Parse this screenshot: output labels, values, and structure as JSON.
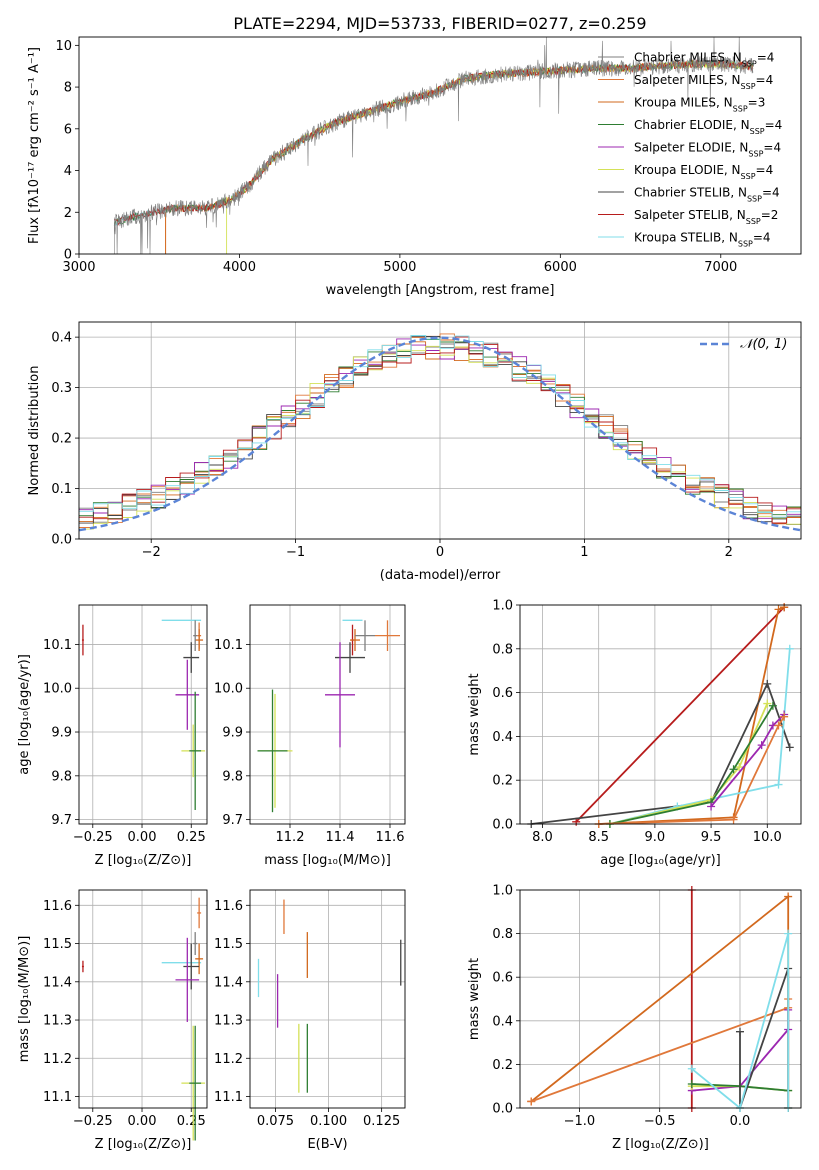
{
  "figure_title": "PLATE=2294, MJD=53733, FIBERID=0277, z=0.259",
  "colors": {
    "Chabrier MILES": "#7f7f7f",
    "Salpeter MILES": "#e0783a",
    "Kroupa MILES": "#d2691e",
    "Chabrier ELODIE": "#2e7d32",
    "Salpeter ELODIE": "#9c27b0",
    "Kroupa ELODIE": "#d4e157",
    "Chabrier STELIB": "#444444",
    "Salpeter STELIB": "#b71c1c",
    "Kroupa STELIB": "#80deea",
    "gauss": "#5b84d6",
    "grid": "#b0b0b0"
  },
  "chart_data": [
    {
      "id": "spectrum",
      "type": "line",
      "xlabel": "wavelength [Angstrom, rest frame]",
      "ylabel": "Flux [f_λ10^-17 erg cm^-2 s^-1 A^-1]",
      "xlim": [
        3000,
        7500
      ],
      "ylim": [
        0,
        10.4
      ],
      "xticks": [
        3000,
        4000,
        5000,
        6000,
        7000
      ],
      "yticks": [
        0,
        2,
        4,
        6,
        8,
        10
      ],
      "grid": false,
      "legend": "top-right",
      "legend_entries": [
        {
          "name": "Chabrier MILES, N_SSP=4",
          "color": "#7f7f7f"
        },
        {
          "name": "Salpeter MILES, N_SSP=4",
          "color": "#e0783a"
        },
        {
          "name": "Kroupa MILES, N_SSP=3",
          "color": "#d2691e"
        },
        {
          "name": "Chabrier ELODIE, N_SSP=4",
          "color": "#2e7d32"
        },
        {
          "name": "Salpeter ELODIE, N_SSP=4",
          "color": "#9c27b0"
        },
        {
          "name": "Kroupa ELODIE, N_SSP=4",
          "color": "#d4e157"
        },
        {
          "name": "Chabrier STELIB, N_SSP=4",
          "color": "#444444"
        },
        {
          "name": "Salpeter STELIB, N_SSP=2",
          "color": "#b71c1c"
        },
        {
          "name": "Kroupa STELIB, N_SSP=4",
          "color": "#80deea"
        }
      ],
      "continuum": [
        [
          3220,
          1.5
        ],
        [
          3400,
          1.9
        ],
        [
          3600,
          2.2
        ],
        [
          3800,
          2.2
        ],
        [
          3950,
          2.6
        ],
        [
          4050,
          3.2
        ],
        [
          4200,
          4.5
        ],
        [
          4400,
          5.5
        ],
        [
          4600,
          6.3
        ],
        [
          4800,
          6.8
        ],
        [
          5000,
          7.3
        ],
        [
          5200,
          7.7
        ],
        [
          5400,
          8.4
        ],
        [
          5600,
          8.6
        ],
        [
          5800,
          8.7
        ],
        [
          6000,
          8.8
        ],
        [
          6200,
          8.9
        ],
        [
          6400,
          8.9
        ],
        [
          6600,
          9.0
        ],
        [
          6800,
          9.1
        ],
        [
          7000,
          9.1
        ],
        [
          7200,
          9.0
        ]
      ],
      "data_start": 3220,
      "data_end": 7200
    },
    {
      "id": "residuals",
      "type": "line",
      "xlabel": "(data-model)/error",
      "ylabel": "Normed distribution",
      "xlim": [
        -2.5,
        2.5
      ],
      "ylim": [
        0,
        0.43
      ],
      "xticks": [
        -2,
        -1,
        0,
        1,
        2
      ],
      "yticks": [
        0.0,
        0.1,
        0.2,
        0.3,
        0.4
      ],
      "grid": true,
      "legend": "top-right",
      "gauss_label": "N(0,1)"
    },
    {
      "id": "age_vs_Z",
      "type": "scatter",
      "xlabel": "Z [log10(Z/Z_sun)]",
      "ylabel": "age [log10(age/yr)]",
      "xlim": [
        -0.32,
        0.33
      ],
      "ylim": [
        9.69,
        10.19
      ],
      "xticks": [
        -0.25,
        0.0,
        0.25
      ],
      "yticks": [
        9.7,
        9.8,
        9.9,
        10.0,
        10.1
      ],
      "grid": true,
      "points": [
        {
          "series": "Salpeter STELIB",
          "x": -0.3,
          "y": 10.11,
          "xerr": 0.005,
          "yerr": 0.035
        },
        {
          "series": "Kroupa STELIB",
          "x": 0.2,
          "y": 10.155,
          "xerr": 0.1,
          "yerr": 0.0
        },
        {
          "series": "Salpeter MILES",
          "x": 0.29,
          "y": 10.12,
          "xerr": 0.01,
          "yerr": 0.03
        },
        {
          "series": "Kroupa MILES",
          "x": 0.29,
          "y": 10.11,
          "xerr": 0.02,
          "yerr": 0.025
        },
        {
          "series": "Chabrier MILES",
          "x": 0.27,
          "y": 10.12,
          "xerr": 0.01,
          "yerr": 0.035
        },
        {
          "series": "Chabrier STELIB",
          "x": 0.25,
          "y": 10.07,
          "xerr": 0.04,
          "yerr": 0.035
        },
        {
          "series": "Salpeter ELODIE",
          "x": 0.23,
          "y": 9.985,
          "xerr": 0.06,
          "yerr": 0.08
        },
        {
          "series": "Kroupa ELODIE",
          "x": 0.26,
          "y": 9.857,
          "xerr": 0.06,
          "yerr": 0.06
        },
        {
          "series": "Chabrier ELODIE",
          "x": 0.27,
          "y": 9.857,
          "xerr": 0.03,
          "yerr": 0.135
        }
      ]
    },
    {
      "id": "age_vs_mass",
      "type": "scatter",
      "xlabel": "mass [log10(M/M_sun)]",
      "ylabel": "",
      "xlim": [
        11.04,
        11.66
      ],
      "ylim": [
        9.69,
        10.19
      ],
      "xticks": [
        11.2,
        11.4,
        11.6
      ],
      "yticks": [
        9.7,
        9.8,
        9.9,
        10.0,
        10.1
      ],
      "grid": true,
      "points": [
        {
          "series": "Salpeter STELIB",
          "x": 11.45,
          "y": 10.11,
          "xerr": 0.005,
          "yerr": 0.035
        },
        {
          "series": "Kroupa STELIB",
          "x": 11.45,
          "y": 10.155,
          "xerr": 0.04,
          "yerr": 0.0
        },
        {
          "series": "Salpeter MILES",
          "x": 11.59,
          "y": 10.12,
          "xerr": 0.05,
          "yerr": 0.035
        },
        {
          "series": "Kroupa MILES",
          "x": 11.46,
          "y": 10.11,
          "xerr": 0.02,
          "yerr": 0.025
        },
        {
          "series": "Chabrier MILES",
          "x": 11.5,
          "y": 10.12,
          "xerr": 0.04,
          "yerr": 0.035
        },
        {
          "series": "Chabrier STELIB",
          "x": 11.44,
          "y": 10.07,
          "xerr": 0.06,
          "yerr": 0.035
        },
        {
          "series": "Salpeter ELODIE",
          "x": 11.4,
          "y": 9.985,
          "xerr": 0.06,
          "yerr": 0.12
        },
        {
          "series": "Kroupa ELODIE",
          "x": 11.14,
          "y": 9.857,
          "xerr": 0.07,
          "yerr": 0.13
        },
        {
          "series": "Chabrier ELODIE",
          "x": 11.13,
          "y": 9.857,
          "xerr": 0.06,
          "yerr": 0.14
        }
      ]
    },
    {
      "id": "massweight_vs_age",
      "type": "line",
      "xlabel": "age [log10(age/yr)]",
      "ylabel": "mass weight",
      "xlim": [
        7.8,
        10.3
      ],
      "ylim": [
        0.0,
        1.0
      ],
      "xticks": [
        8.0,
        8.5,
        9.0,
        9.5,
        10.0
      ],
      "yticks": [
        0.0,
        0.2,
        0.4,
        0.6,
        0.8,
        1.0
      ],
      "grid": true,
      "series": [
        {
          "name": "Salpeter STELIB",
          "x": [
            8.3,
            10.15
          ],
          "y": [
            0.01,
            0.99
          ]
        },
        {
          "name": "Kroupa MILES",
          "x": [
            8.5,
            9.7,
            10.1,
            10.15
          ],
          "y": [
            0.0,
            0.03,
            0.98,
            0.99
          ]
        },
        {
          "name": "Chabrier STELIB",
          "x": [
            7.9,
            9.5,
            10.0,
            10.2
          ],
          "y": [
            0.0,
            0.1,
            0.64,
            0.35
          ]
        },
        {
          "name": "Kroupa STELIB",
          "x": [
            8.6,
            9.2,
            10.1,
            10.2
          ],
          "y": [
            0.0,
            0.08,
            0.18,
            0.8
          ]
        },
        {
          "name": "Kroupa ELODIE",
          "x": [
            8.6,
            9.5,
            9.75,
            10.0
          ],
          "y": [
            0.0,
            0.11,
            0.26,
            0.55
          ]
        },
        {
          "name": "Chabrier ELODIE",
          "x": [
            8.6,
            9.5,
            9.7,
            10.05
          ],
          "y": [
            0.0,
            0.1,
            0.25,
            0.54
          ]
        },
        {
          "name": "Salpeter ELODIE",
          "x": [
            9.5,
            9.95,
            10.05,
            10.15
          ],
          "y": [
            0.08,
            0.36,
            0.45,
            0.5
          ]
        },
        {
          "name": "Salpeter MILES",
          "x": [
            8.5,
            9.7,
            10.1,
            10.15
          ],
          "y": [
            0.0,
            0.02,
            0.45,
            0.49
          ]
        }
      ]
    },
    {
      "id": "mass_vs_Z",
      "type": "scatter",
      "xlabel": "Z [log10(Z/Z_sun)]",
      "ylabel": "mass [log10(M/M_sun)]",
      "xlim": [
        -0.32,
        0.33
      ],
      "ylim": [
        11.07,
        11.64
      ],
      "xticks": [
        -0.25,
        0.0,
        0.25
      ],
      "yticks": [
        11.1,
        11.2,
        11.3,
        11.4,
        11.5,
        11.6
      ],
      "grid": true,
      "points": [
        {
          "series": "Salpeter STELIB",
          "x": -0.3,
          "y": 11.44,
          "xerr": 0.005,
          "yerr": 0.015
        },
        {
          "series": "Kroupa STELIB",
          "x": 0.2,
          "y": 11.45,
          "xerr": 0.1,
          "yerr": 0.0
        },
        {
          "series": "Salpeter MILES",
          "x": 0.29,
          "y": 11.58,
          "xerr": 0.01,
          "yerr": 0.04
        },
        {
          "series": "Kroupa MILES",
          "x": 0.29,
          "y": 11.46,
          "xerr": 0.02,
          "yerr": 0.04
        },
        {
          "series": "Chabrier MILES",
          "x": 0.27,
          "y": 11.5,
          "xerr": 0.01,
          "yerr": 0.03
        },
        {
          "series": "Chabrier STELIB",
          "x": 0.25,
          "y": 11.44,
          "xerr": 0.04,
          "yerr": 0.06
        },
        {
          "series": "Salpeter ELODIE",
          "x": 0.23,
          "y": 11.405,
          "xerr": 0.06,
          "yerr": 0.11
        },
        {
          "series": "Kroupa ELODIE",
          "x": 0.26,
          "y": 11.135,
          "xerr": 0.06,
          "yerr": 0.15
        },
        {
          "series": "Chabrier ELODIE",
          "x": 0.27,
          "y": 11.135,
          "xerr": 0.03,
          "yerr": 0.15
        }
      ]
    },
    {
      "id": "mass_vs_EBV",
      "type": "scatter",
      "xlabel": "E(B-V)",
      "ylabel": "",
      "xlim": [
        0.063,
        0.136
      ],
      "ylim": [
        11.07,
        11.64
      ],
      "xticks": [
        0.075,
        0.1,
        0.125
      ],
      "yticks": [
        11.1,
        11.2,
        11.3,
        11.4,
        11.5,
        11.6
      ],
      "grid": true,
      "points": [
        {
          "series": "Kroupa STELIB",
          "x": 0.067,
          "y": 11.41,
          "xerr": 0.0,
          "yerr": 0.05
        },
        {
          "series": "Salpeter ELODIE",
          "x": 0.076,
          "y": 11.35,
          "xerr": 0.0,
          "yerr": 0.07
        },
        {
          "series": "Salpeter MILES",
          "x": 0.079,
          "y": 11.57,
          "xerr": 0.0,
          "yerr": 0.045
        },
        {
          "series": "Kroupa ELODIE",
          "x": 0.086,
          "y": 11.2,
          "xerr": 0.0,
          "yerr": 0.09
        },
        {
          "series": "Chabrier ELODIE",
          "x": 0.09,
          "y": 11.2,
          "xerr": 0.0,
          "yerr": 0.09
        },
        {
          "series": "Kroupa MILES",
          "x": 0.09,
          "y": 11.47,
          "xerr": 0.0,
          "yerr": 0.06
        },
        {
          "series": "Chabrier STELIB",
          "x": 0.134,
          "y": 11.45,
          "xerr": 0.0,
          "yerr": 0.06
        }
      ]
    },
    {
      "id": "massweight_vs_Z",
      "type": "line",
      "xlabel": "Z [log10(Z/Z_sun)]",
      "ylabel": "mass weight",
      "xlim": [
        -1.37,
        0.38
      ],
      "ylim": [
        0.0,
        1.0
      ],
      "xticks": [
        -1.0,
        -0.5,
        0.0
      ],
      "yticks": [
        0.0,
        0.2,
        0.4,
        0.6,
        0.8,
        1.0
      ],
      "grid": true,
      "series": [
        {
          "name": "Salpeter STELIB",
          "x": [
            -0.3,
            -0.3
          ],
          "y": [
            0.0,
            1.0
          ]
        },
        {
          "name": "Kroupa MILES",
          "x": [
            -1.3,
            0.3,
            0.3
          ],
          "y": [
            0.03,
            0.97,
            0.0
          ]
        },
        {
          "name": "Salpeter MILES",
          "x": [
            -1.3,
            0.3,
            0.3
          ],
          "y": [
            0.03,
            0.46,
            0.5
          ]
        },
        {
          "name": "Salpeter ELODIE",
          "x": [
            -0.3,
            0.0,
            0.3,
            0.3
          ],
          "y": [
            0.08,
            0.1,
            0.36,
            0.45
          ]
        },
        {
          "name": "Kroupa ELODIE",
          "x": [
            -0.3,
            0.0,
            0.3
          ],
          "y": [
            0.1,
            0.1,
            0.08
          ]
        },
        {
          "name": "Chabrier ELODIE",
          "x": [
            -0.3,
            0.0,
            0.3
          ],
          "y": [
            0.11,
            0.1,
            0.08
          ]
        },
        {
          "name": "Chabrier STELIB",
          "x": [
            0.0,
            0.0,
            0.3,
            0.3
          ],
          "y": [
            0.35,
            0.0,
            0.64,
            0.0
          ]
        },
        {
          "name": "Kroupa STELIB",
          "x": [
            -0.3,
            0.0,
            0.3,
            0.3
          ],
          "y": [
            0.18,
            0.0,
            0.8,
            0.0
          ]
        }
      ]
    }
  ]
}
